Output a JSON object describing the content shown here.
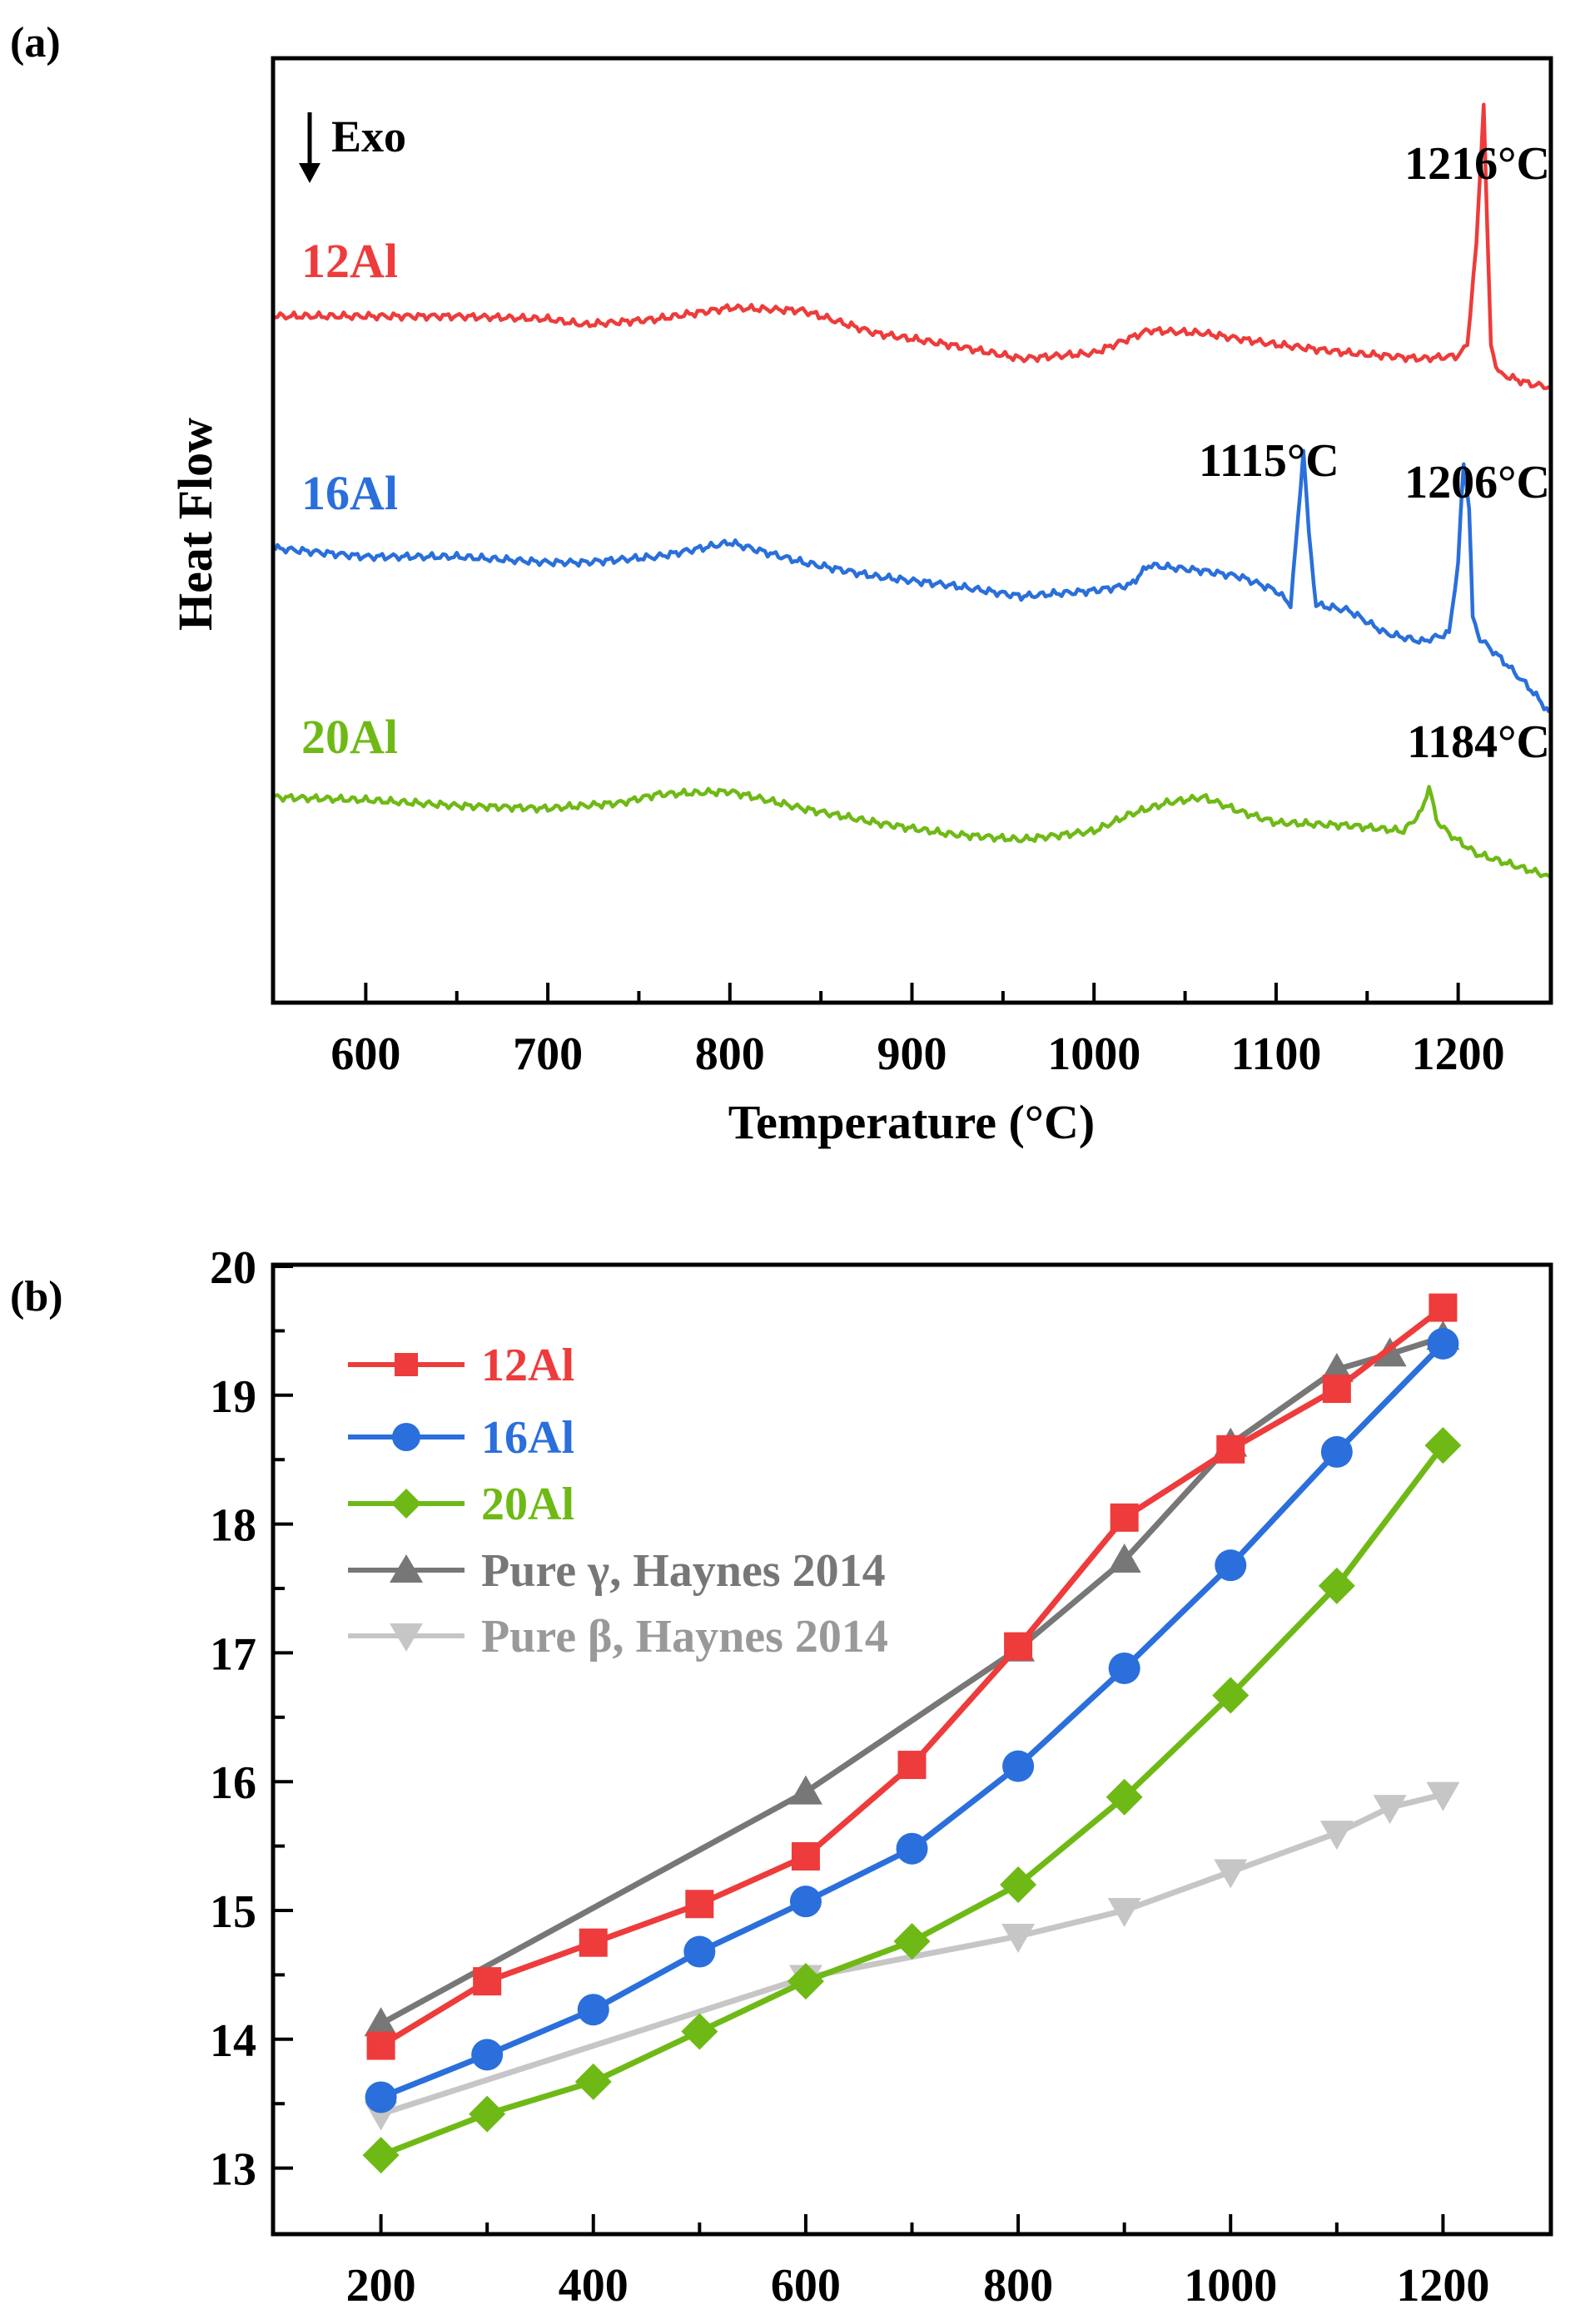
{
  "chart_data": [
    {
      "panel_label": "(a)",
      "type": "line",
      "title": "",
      "xlabel": "Temperature (°C)",
      "ylabel": "Heat Flow",
      "xlim": [
        550,
        1250
      ],
      "x_ticks": [
        600,
        700,
        800,
        900,
        1000,
        1100,
        1200
      ],
      "x_tick_labels": [
        "600",
        "700",
        "800",
        "900",
        "1000",
        "1100",
        "1200"
      ],
      "exo_label": "Exo",
      "y_units": "arbitrary (offset traces)",
      "series": [
        {
          "name": "12Al",
          "color": "#ee3b3b",
          "offset": 0,
          "x": [
            550,
            600,
            650,
            700,
            720,
            760,
            800,
            840,
            880,
            920,
            960,
            1000,
            1030,
            1060,
            1100,
            1140,
            1180,
            1200,
            1205,
            1210,
            1214,
            1216,
            1218,
            1222,
            1230,
            1240,
            1250
          ],
          "y": [
            0,
            0,
            0,
            -0.1,
            -0.3,
            -0.1,
            0.3,
            0.2,
            -0.6,
            -1.0,
            -1.5,
            -1.3,
            -0.5,
            -0.6,
            -1.0,
            -1.3,
            -1.5,
            -1.4,
            -1.0,
            2.5,
            7.5,
            3.0,
            -1.0,
            -2.0,
            -2.2,
            -2.4,
            -2.5
          ]
        },
        {
          "name": "16Al",
          "color": "#2a6fdb",
          "offset": -8.2,
          "x": [
            550,
            600,
            650,
            700,
            720,
            760,
            800,
            840,
            880,
            920,
            960,
            1000,
            1020,
            1030,
            1060,
            1080,
            1100,
            1108,
            1112,
            1115,
            1118,
            1122,
            1140,
            1160,
            1180,
            1195,
            1200,
            1203,
            1206,
            1208,
            1212,
            1225,
            1240,
            1250
          ],
          "y": [
            0,
            -0.3,
            -0.3,
            -0.5,
            -0.5,
            -0.3,
            0.2,
            -0.5,
            -1.0,
            -1.3,
            -1.7,
            -1.5,
            -1.3,
            -0.6,
            -0.8,
            -1.0,
            -1.5,
            -2.0,
            1.0,
            3.5,
            0.5,
            -2.0,
            -2.2,
            -3.0,
            -3.3,
            -3.0,
            -0.5,
            3.0,
            1.5,
            -2.5,
            -3.2,
            -4.0,
            -5.0,
            -5.8
          ]
        },
        {
          "name": "20Al",
          "color": "#6fb916",
          "offset": -17.0,
          "x": [
            550,
            600,
            650,
            700,
            740,
            760,
            800,
            840,
            880,
            920,
            960,
            1000,
            1020,
            1040,
            1060,
            1080,
            1100,
            1140,
            1170,
            1180,
            1184,
            1188,
            1195,
            1210,
            1230,
            1250
          ],
          "y": [
            0,
            -0.1,
            -0.3,
            -0.4,
            -0.2,
            0.1,
            0.2,
            -0.4,
            -0.9,
            -1.3,
            -1.5,
            -1.2,
            -0.6,
            -0.2,
            0,
            -0.5,
            -0.9,
            -1.0,
            -1.2,
            -0.5,
            0.4,
            -0.8,
            -1.3,
            -2.0,
            -2.4,
            -2.8
          ]
        }
      ],
      "series_labels": [
        "12Al",
        "16Al",
        "20Al"
      ],
      "annotations": [
        {
          "text": "1216°C",
          "x": 1216,
          "series": "12Al"
        },
        {
          "text": "1115°C",
          "x": 1115,
          "series": "16Al"
        },
        {
          "text": "1206°C",
          "x": 1206,
          "series": "16Al"
        },
        {
          "text": "1184°C",
          "x": 1184,
          "series": "20Al"
        }
      ]
    },
    {
      "panel_label": "(b)",
      "type": "line",
      "title": "",
      "xlabel": "",
      "ylabel": "",
      "xlim": [
        100,
        1300
      ],
      "ylim": [
        12.5,
        20
      ],
      "x_ticks": [
        200,
        400,
        600,
        800,
        1000,
        1200
      ],
      "x_tick_labels": [
        "200",
        "400",
        "600",
        "800",
        "1000",
        "1200"
      ],
      "y_ticks": [
        13,
        14,
        15,
        16,
        17,
        18,
        19,
        20
      ],
      "y_tick_labels": [
        "13",
        "14",
        "15",
        "16",
        "17",
        "18",
        "19",
        "20"
      ],
      "legend_position": "top-left",
      "series": [
        {
          "name": "12Al",
          "color": "#ee3b3b",
          "marker": "square",
          "x": [
            200,
            300,
            400,
            500,
            600,
            700,
            800,
            900,
            1000,
            1100,
            1200
          ],
          "y": [
            13.95,
            14.45,
            14.75,
            15.05,
            15.42,
            16.13,
            17.05,
            18.05,
            18.58,
            19.05,
            19.68
          ]
        },
        {
          "name": "16Al",
          "color": "#2a6fdb",
          "marker": "circle",
          "x": [
            200,
            300,
            400,
            500,
            600,
            700,
            800,
            900,
            1000,
            1100,
            1200
          ],
          "y": [
            13.55,
            13.88,
            14.23,
            14.68,
            15.07,
            15.48,
            16.12,
            16.88,
            17.68,
            18.56,
            19.4
          ]
        },
        {
          "name": "20Al",
          "color": "#6fb916",
          "marker": "diamond",
          "x": [
            200,
            300,
            400,
            500,
            600,
            700,
            800,
            900,
            1000,
            1100,
            1200
          ],
          "y": [
            13.1,
            13.42,
            13.67,
            14.06,
            14.45,
            14.76,
            15.2,
            15.88,
            16.67,
            17.52,
            18.61
          ]
        },
        {
          "name": "Pure γ, Haynes 2014",
          "color": "#777777",
          "marker": "triangle-up",
          "x": [
            200,
            600,
            800,
            900,
            1000,
            1100,
            1150,
            1200
          ],
          "y": [
            14.12,
            15.92,
            17.03,
            17.72,
            18.62,
            19.2,
            19.32,
            19.45
          ]
        },
        {
          "name": "Pure β, Haynes 2014",
          "color": "#c6c6c6",
          "marker": "triangle-down",
          "x": [
            200,
            600,
            800,
            900,
            1000,
            1100,
            1150,
            1200
          ],
          "y": [
            13.42,
            14.48,
            14.8,
            15.0,
            15.3,
            15.6,
            15.8,
            15.9
          ]
        }
      ]
    }
  ]
}
